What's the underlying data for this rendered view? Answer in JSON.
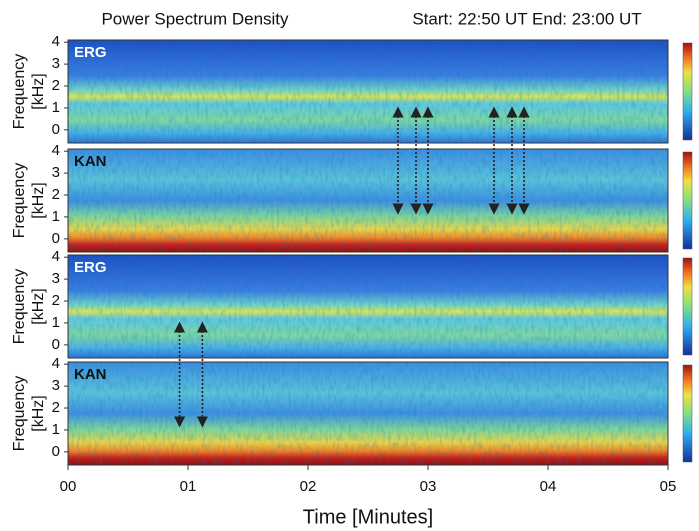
{
  "chart_data": {
    "type": "spectrogram",
    "title": "Power Spectrum Density",
    "subtitle": "Start: 22:50 UT End: 23:00 UT",
    "xlabel": "Time [Minutes]",
    "ylabel": [
      "Frequency",
      "[kHz]"
    ],
    "xlim": [
      0,
      5
    ],
    "xticks": [
      {
        "value": 0,
        "label": "00"
      },
      {
        "value": 1,
        "label": "01"
      },
      {
        "value": 2,
        "label": "02"
      },
      {
        "value": 3,
        "label": "03"
      },
      {
        "value": 4,
        "label": "04"
      },
      {
        "value": 5,
        "label": "05"
      }
    ],
    "ylim": [
      -0.6,
      4.1
    ],
    "yticks": [
      0,
      1,
      2,
      3,
      4
    ],
    "panels": [
      {
        "label": "ERG"
      },
      {
        "label": "KAN"
      },
      {
        "label": "ERG"
      },
      {
        "label": "KAN"
      }
    ],
    "arrows": [
      {
        "pair": 0,
        "x": [
          2.75,
          2.9,
          3.0,
          3.55,
          3.7,
          3.8
        ]
      },
      {
        "pair": 2,
        "x": [
          0.93,
          1.12
        ]
      }
    ]
  }
}
